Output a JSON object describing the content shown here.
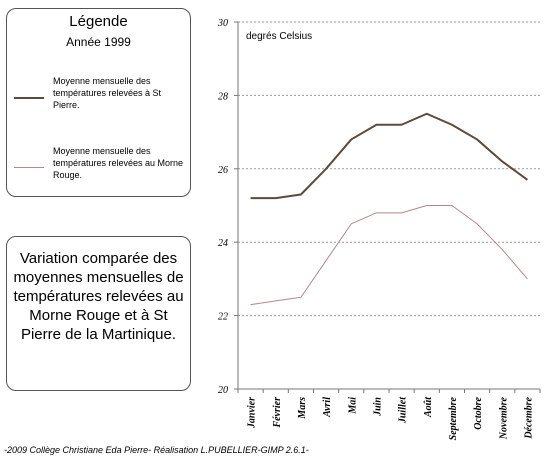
{
  "legend": {
    "title": "Légende",
    "year": "Année 1999",
    "items": [
      {
        "text": "Moyenne mensuelle des températures relevées à St Pierre.",
        "color": "#5c4a3b"
      },
      {
        "text": "Moyenne mensuelle des températures relevées au Morne Rouge.",
        "color": "#b8868a"
      }
    ]
  },
  "description": "Variation comparée des moyennes mensuelles de températures relevées au Morne Rouge et à St Pierre de la Martinique.",
  "footer": "-2009 Collège Christiane Eda Pierre- Réalisation L.PUBELLIER-GIMP 2.6.1-",
  "chart_data": {
    "type": "line",
    "unit_label": "degrés Celsius",
    "categories": [
      "Janvier",
      "Février",
      "Mars",
      "Avril",
      "Mai",
      "Juin",
      "Juillet",
      "Août",
      "Septembre",
      "Octobre",
      "Novembre",
      "Décembre"
    ],
    "ylim": [
      20,
      30
    ],
    "yticks": [
      20,
      22,
      24,
      26,
      28,
      30
    ],
    "grid": true,
    "series": [
      {
        "values": [
          25.2,
          25.2,
          25.3,
          26.0,
          26.8,
          27.2,
          27.2,
          27.5,
          27.2,
          26.8,
          26.2,
          25.7
        ],
        "color": "#5c4a3b"
      },
      {
        "values": [
          22.3,
          22.4,
          22.5,
          23.5,
          24.5,
          24.8,
          24.8,
          25.0,
          25.0,
          24.5,
          23.8,
          23.0
        ],
        "color": "#b8868a"
      }
    ]
  }
}
